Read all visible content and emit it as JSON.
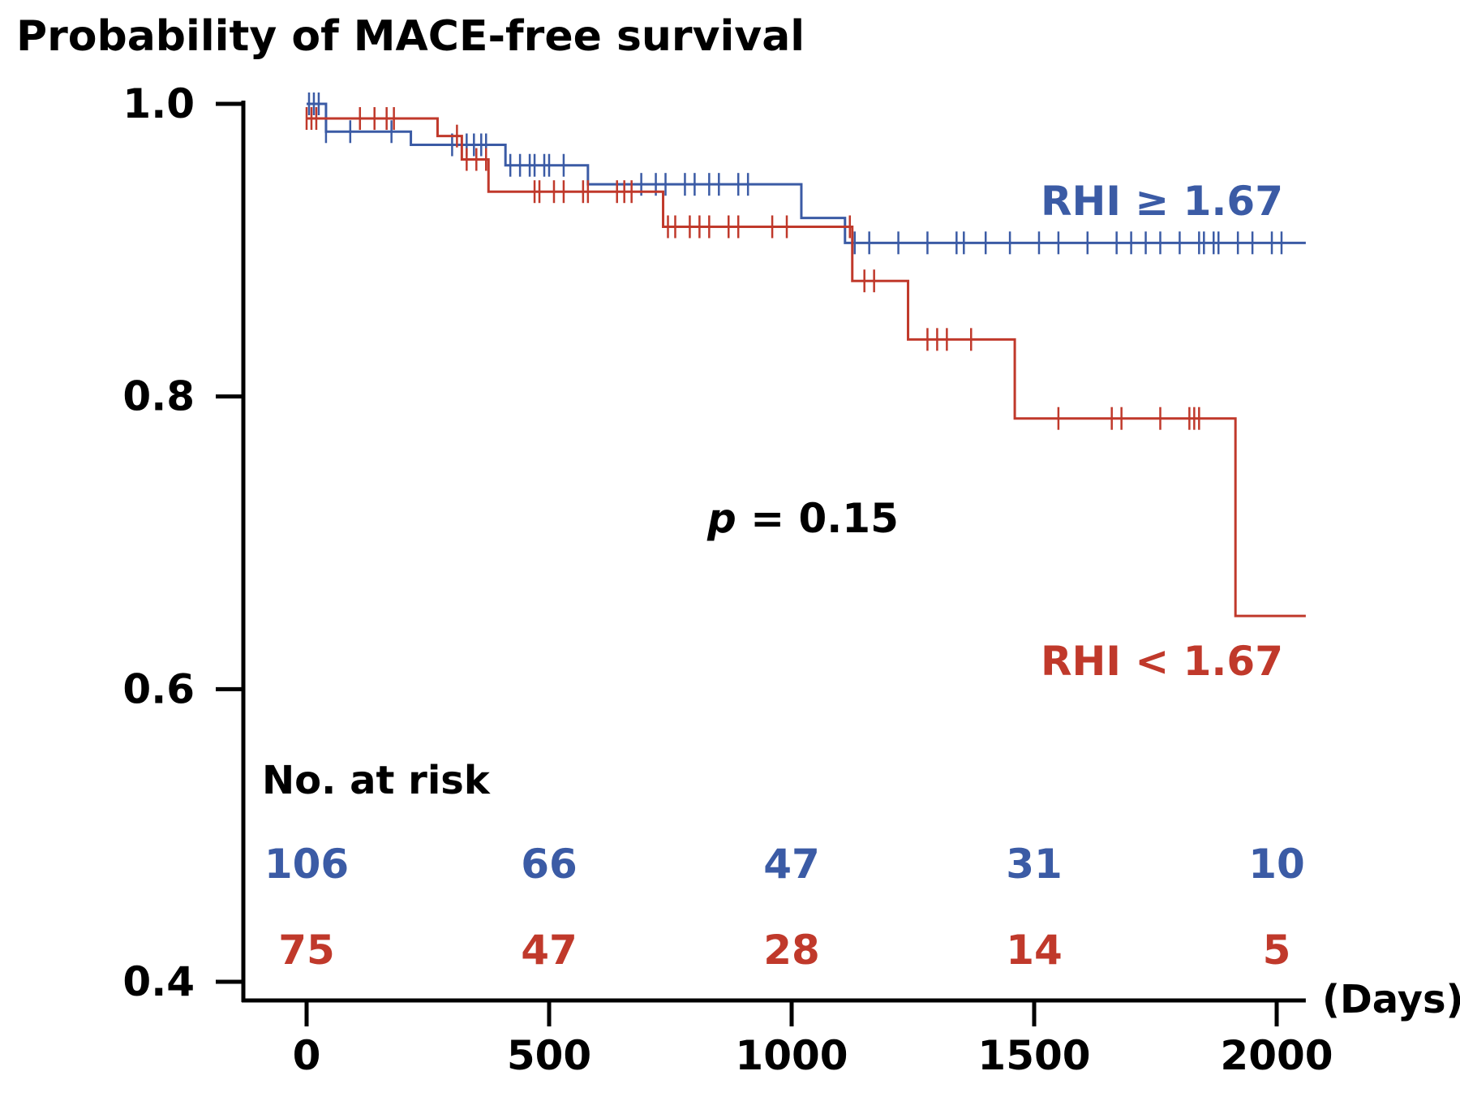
{
  "chart_data": {
    "type": "line",
    "subtype": "kaplan-meier",
    "title": "Probability of MACE-free survival",
    "xlabel": "(Days)",
    "ylabel": "",
    "xlim": [
      -130,
      2060
    ],
    "ylim": [
      0.4,
      1.0
    ],
    "x_ticks": [
      0,
      500,
      1000,
      1500,
      2000
    ],
    "x_tick_labels": [
      "0",
      "500",
      "1000",
      "1500",
      "2000"
    ],
    "y_ticks": [
      0.4,
      0.6,
      0.8,
      1.0
    ],
    "y_tick_labels": [
      "0.4",
      "0.6",
      "0.8",
      "1.0"
    ],
    "grid": false,
    "legend": "inline labels at right end of curves",
    "colors": {
      "high": "#3b5ba5",
      "low": "#c0392b",
      "axis": "#000000"
    },
    "series": [
      {
        "name": "RHI ≥ 1.67",
        "color": "#3b5ba5",
        "steps": [
          [
            0,
            1.0
          ],
          [
            40,
            0.981
          ],
          [
            215,
            0.972
          ],
          [
            410,
            0.958
          ],
          [
            580,
            0.945
          ],
          [
            1020,
            0.922
          ],
          [
            1110,
            0.905
          ],
          [
            2060,
            0.905
          ]
        ],
        "censor_x": [
          5,
          15,
          25,
          40,
          90,
          175,
          300,
          330,
          345,
          360,
          370,
          420,
          440,
          460,
          470,
          490,
          500,
          530,
          690,
          720,
          740,
          780,
          800,
          830,
          850,
          890,
          910,
          1130,
          1160,
          1220,
          1280,
          1340,
          1355,
          1400,
          1450,
          1510,
          1550,
          1610,
          1670,
          1700,
          1730,
          1760,
          1800,
          1840,
          1850,
          1870,
          1880,
          1920,
          1950,
          1990,
          2010
        ]
      },
      {
        "name": "RHI < 1.67",
        "color": "#c0392b",
        "steps": [
          [
            0,
            0.99
          ],
          [
            270,
            0.978
          ],
          [
            320,
            0.962
          ],
          [
            375,
            0.94
          ],
          [
            735,
            0.916
          ],
          [
            1125,
            0.879
          ],
          [
            1240,
            0.839
          ],
          [
            1460,
            0.785
          ],
          [
            1915,
            0.65
          ],
          [
            2060,
            0.65
          ]
        ],
        "censor_x": [
          0,
          10,
          20,
          110,
          140,
          165,
          180,
          310,
          330,
          350,
          370,
          470,
          480,
          510,
          530,
          570,
          580,
          640,
          655,
          670,
          745,
          760,
          790,
          810,
          830,
          870,
          890,
          960,
          990,
          1120,
          1150,
          1170,
          1280,
          1300,
          1320,
          1370,
          1550,
          1660,
          1680,
          1760,
          1820,
          1830,
          1840
        ]
      }
    ],
    "annotations": {
      "p_symbol": "p",
      "p_rest": " = 0.15",
      "risk_title": "No. at risk"
    },
    "risk_table": {
      "times": [
        0,
        500,
        1000,
        1500,
        2000
      ],
      "rows": [
        {
          "name": "RHI ≥ 1.67",
          "color": "#3b5ba5",
          "values": [
            "106",
            "66",
            "47",
            "31",
            "10"
          ]
        },
        {
          "name": "RHI < 1.67",
          "color": "#c0392b",
          "values": [
            "75",
            "47",
            "28",
            "14",
            "5"
          ]
        }
      ]
    }
  }
}
